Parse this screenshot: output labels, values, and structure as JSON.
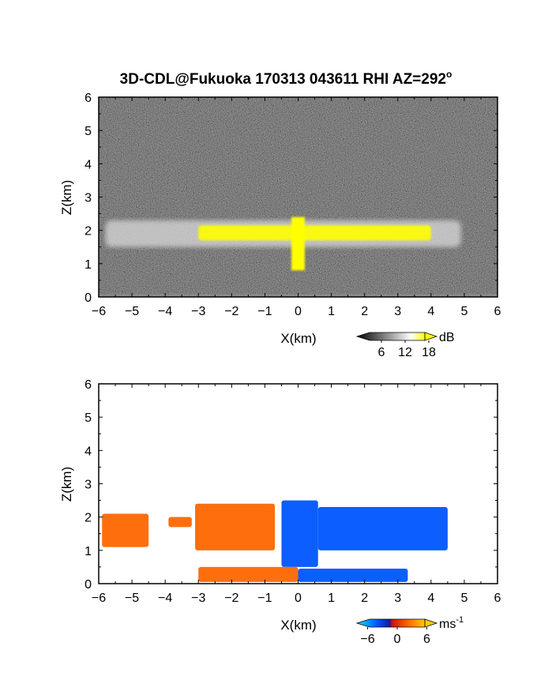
{
  "title": "3D-CDL@Fukuoka 170313 043611 RHI AZ=292",
  "title_superscript": "o",
  "chart_data": [
    {
      "type": "heatmap",
      "panel": "reflectivity",
      "xlabel": "X(km)",
      "ylabel": "Z(km)",
      "xlim": [
        -6,
        6
      ],
      "ylim": [
        0,
        6
      ],
      "xticks": [
        "-6",
        "-5",
        "-4",
        "-3",
        "-2",
        "-1",
        "0",
        "1",
        "2",
        "3",
        "4",
        "5",
        "6"
      ],
      "yticks": [
        "0",
        "1",
        "2",
        "3",
        "4",
        "5",
        "6"
      ],
      "colorbar": {
        "unit": "dB",
        "ticks": [
          "6",
          "12",
          "18"
        ],
        "range": [
          0,
          20
        ]
      },
      "colormap": [
        "#000000",
        "#ffffff",
        "#ffff00"
      ],
      "background_color": "#1a1a1a",
      "cloud_layer": {
        "z_base_km": 1.5,
        "z_top_km": 2.3,
        "x_extent_km": [
          -5.8,
          4.9
        ],
        "high_intensity_region_km": [
          -3.0,
          4.0
        ],
        "updraft_column_x_km": 0.0,
        "updraft_column_z_km": [
          0.8,
          2.4
        ]
      }
    },
    {
      "type": "heatmap",
      "panel": "doppler_velocity",
      "xlabel": "X(km)",
      "ylabel": "Z(km)",
      "xlim": [
        -6,
        6
      ],
      "ylim": [
        0,
        6
      ],
      "xticks": [
        "-6",
        "-5",
        "-4",
        "-3",
        "-2",
        "-1",
        "0",
        "1",
        "2",
        "3",
        "4",
        "5",
        "6"
      ],
      "yticks": [
        "0",
        "1",
        "2",
        "3",
        "4",
        "5",
        "6"
      ],
      "colorbar": {
        "unit": "ms",
        "unit_exponent": "-1",
        "ticks": [
          "-6",
          "0",
          "6"
        ],
        "range": [
          -8,
          8
        ]
      },
      "colormap": [
        "#00e5ff",
        "#0055ff",
        "#1a1aa0",
        "#cc1111",
        "#ff6600",
        "#ffcc00"
      ],
      "regions": [
        {
          "x_km": [
            -5.9,
            -4.5
          ],
          "z_km": [
            1.1,
            2.1
          ],
          "velocity": 5
        },
        {
          "x_km": [
            -3.9,
            -3.2
          ],
          "z_km": [
            1.7,
            2.0
          ],
          "velocity": 4
        },
        {
          "x_km": [
            -3.1,
            -0.7
          ],
          "z_km": [
            1.0,
            2.4
          ],
          "velocity": 3
        },
        {
          "x_km": [
            -0.5,
            0.6
          ],
          "z_km": [
            0.5,
            2.5
          ],
          "velocity": -3
        },
        {
          "x_km": [
            0.6,
            4.5
          ],
          "z_km": [
            1.0,
            2.3
          ],
          "velocity": -5
        },
        {
          "x_km": [
            -3.0,
            0.0
          ],
          "z_km": [
            0.05,
            0.5
          ],
          "velocity": 5
        },
        {
          "x_km": [
            0.0,
            3.3
          ],
          "z_km": [
            0.05,
            0.45
          ],
          "velocity": -5
        }
      ]
    }
  ]
}
